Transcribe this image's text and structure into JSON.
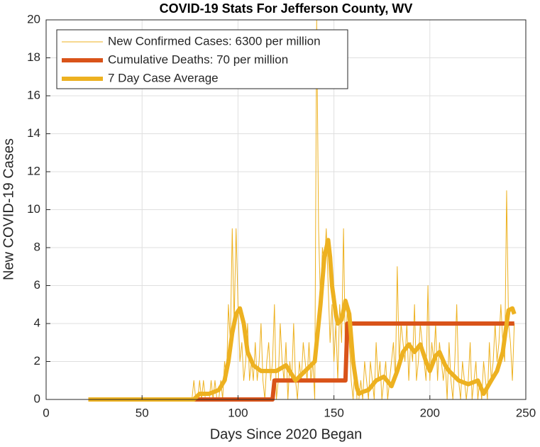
{
  "chart_data": {
    "type": "line",
    "title": "COVID-19 Stats For Jefferson County, WV",
    "x_label": "Days Since 2020 Began",
    "y_label": "New COVID-19 Cases",
    "xlim": [
      0,
      250
    ],
    "xticks": [
      0,
      50,
      100,
      150,
      200,
      250
    ],
    "ylim": [
      0,
      20
    ],
    "yticks": [
      0,
      2,
      4,
      6,
      8,
      10,
      12,
      14,
      16,
      18,
      20
    ],
    "grid": true,
    "legend": "upper left",
    "series": [
      {
        "name": "New Confirmed Cases: 6300 per million",
        "color": "#edb120",
        "width": 1,
        "x": [
          22,
          23,
          24,
          25,
          26,
          27,
          28,
          29,
          30,
          31,
          32,
          33,
          34,
          35,
          36,
          37,
          38,
          39,
          40,
          41,
          42,
          43,
          44,
          45,
          46,
          47,
          48,
          49,
          50,
          51,
          52,
          53,
          54,
          55,
          56,
          57,
          58,
          59,
          60,
          61,
          62,
          63,
          64,
          65,
          66,
          67,
          68,
          69,
          70,
          71,
          72,
          73,
          74,
          75,
          76,
          77,
          78,
          79,
          80,
          81,
          82,
          83,
          84,
          85,
          86,
          87,
          88,
          89,
          90,
          91,
          92,
          93,
          94,
          95,
          96,
          97,
          98,
          99,
          100,
          101,
          102,
          103,
          104,
          105,
          106,
          107,
          108,
          109,
          110,
          111,
          112,
          113,
          114,
          115,
          116,
          117,
          118,
          119,
          120,
          121,
          122,
          123,
          124,
          125,
          126,
          127,
          128,
          129,
          130,
          131,
          132,
          133,
          134,
          135,
          136,
          137,
          138,
          139,
          140,
          141,
          142,
          143,
          144,
          145,
          146,
          147,
          148,
          149,
          150,
          151,
          152,
          153,
          154,
          155,
          156,
          157,
          158,
          159,
          160,
          161,
          162,
          163,
          164,
          165,
          166,
          167,
          168,
          169,
          170,
          171,
          172,
          173,
          174,
          175,
          176,
          177,
          178,
          179,
          180,
          181,
          182,
          183,
          184,
          185,
          186,
          187,
          188,
          189,
          190,
          191,
          192,
          193,
          194,
          195,
          196,
          197,
          198,
          199,
          200,
          201,
          202,
          203,
          204,
          205,
          206,
          207,
          208,
          209,
          210,
          211,
          212,
          213,
          214,
          215,
          216,
          217,
          218,
          219,
          220,
          221,
          222,
          223,
          224,
          225,
          226,
          227,
          228,
          229,
          230,
          231,
          232,
          233,
          234,
          235,
          236,
          237,
          238,
          239,
          240,
          241,
          242,
          243,
          244
        ],
        "values": [
          0,
          0,
          0,
          0,
          0,
          0,
          0,
          0,
          0,
          0,
          0,
          0,
          0,
          0,
          0,
          0,
          0,
          0,
          0,
          0,
          0,
          0,
          0,
          0,
          0,
          0,
          0,
          0,
          0,
          0,
          0,
          0,
          0,
          0,
          0,
          0,
          0,
          0,
          0,
          0,
          0,
          0,
          0,
          0,
          0,
          0,
          0,
          0,
          0,
          0,
          0,
          0,
          0,
          0,
          0,
          1,
          0,
          0,
          1,
          0,
          1,
          0,
          0,
          0,
          1,
          0,
          1,
          0,
          0,
          1,
          0,
          2,
          1,
          5,
          3,
          9,
          4,
          9,
          5,
          2,
          3,
          1,
          2,
          4,
          1,
          2,
          1,
          3,
          1,
          2,
          4,
          1,
          0,
          2,
          3,
          1,
          2,
          5,
          0,
          1,
          4,
          2,
          1,
          3,
          0,
          2,
          1,
          4,
          1,
          0,
          2,
          1,
          3,
          2,
          1,
          3,
          1,
          2,
          0,
          20,
          9,
          5,
          8,
          7,
          9,
          6,
          3,
          5,
          2,
          4,
          1,
          5,
          3,
          9,
          2,
          5,
          3,
          1,
          0,
          2,
          0,
          0,
          1,
          0,
          2,
          1,
          0,
          2,
          1,
          0,
          3,
          1,
          2,
          0,
          1,
          2,
          0,
          1,
          2,
          3,
          1,
          7,
          2,
          4,
          3,
          2,
          4,
          1,
          3,
          2,
          5,
          1,
          2,
          4,
          3,
          2,
          1,
          6,
          1,
          3,
          2,
          4,
          1,
          3,
          2,
          1,
          2,
          0,
          3,
          1,
          0,
          2,
          5,
          1,
          0,
          2,
          1,
          0,
          1,
          3,
          0,
          1,
          2,
          0,
          1,
          0,
          2,
          1,
          0,
          3,
          1,
          2,
          4,
          2,
          3,
          5,
          3,
          2,
          11,
          4,
          3,
          1,
          4
        ]
      },
      {
        "name": "Cumulative Deaths: 70 per million",
        "color": "#d95319",
        "width": 6,
        "x": [
          22,
          118,
          119,
          156,
          157,
          244
        ],
        "values": [
          0,
          0,
          1,
          1,
          4,
          4
        ]
      },
      {
        "name": "7 Day Case Average",
        "color": "#edb120",
        "width": 6,
        "x": [
          22,
          77,
          80,
          85,
          90,
          93,
          95,
          97,
          99,
          101,
          103,
          105,
          108,
          112,
          116,
          120,
          125,
          130,
          135,
          138,
          140,
          142,
          143,
          145,
          147,
          148,
          149,
          151,
          152,
          154,
          156,
          158,
          160,
          162,
          163,
          165,
          168,
          172,
          176,
          180,
          183,
          186,
          189,
          192,
          195,
          198,
          200,
          203,
          205,
          208,
          210,
          215,
          220,
          225,
          228,
          232,
          235,
          238,
          240,
          241,
          243,
          244
        ],
        "values": [
          0,
          0,
          0.3,
          0.3,
          0.5,
          1,
          2,
          3.5,
          4.5,
          4.8,
          4,
          2.5,
          1.8,
          1.5,
          1.5,
          1.5,
          1.8,
          1,
          1.5,
          1.8,
          2,
          4,
          5,
          7.5,
          8.4,
          7.5,
          6,
          4.5,
          4,
          4.2,
          5.2,
          4.5,
          2,
          0.6,
          0.3,
          0.4,
          0.5,
          1,
          1.2,
          0.7,
          1.5,
          2.5,
          2.9,
          2.5,
          2.9,
          2,
          1.5,
          2.3,
          2.5,
          1.8,
          1.5,
          1,
          0.8,
          1,
          0.3,
          1,
          1.5,
          2.5,
          4,
          4.7,
          4.8,
          4.5
        ]
      }
    ]
  }
}
